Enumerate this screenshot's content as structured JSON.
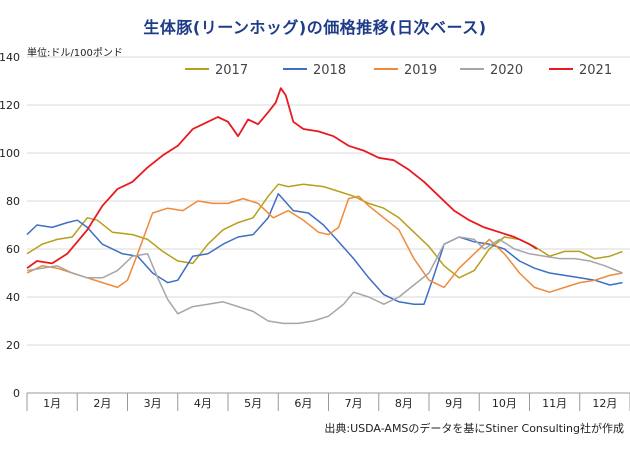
{
  "chart_data": {
    "type": "line",
    "title": "生体豚(リーンホッグ)の価格推移(日次ベース)",
    "ylabel": "単位:ドル/100ポンド",
    "source": "出典:USDA-AMSのデータを基にStiner Consulting社が作成",
    "ylim": [
      0,
      140
    ],
    "yticks": [
      0,
      20,
      40,
      60,
      80,
      100,
      120,
      140
    ],
    "xlim": [
      1,
      13
    ],
    "x_tick_labels": [
      "1月",
      "2月",
      "3月",
      "4月",
      "5月",
      "6月",
      "7月",
      "8月",
      "9月",
      "10月",
      "11月",
      "12月"
    ],
    "legend_position": "top",
    "grid": true,
    "series": [
      {
        "name": "2017",
        "color": "#b5a01b",
        "x": [
          1.0,
          1.3,
          1.6,
          1.9,
          2.2,
          2.4,
          2.7,
          3.1,
          3.4,
          3.7,
          4.0,
          4.3,
          4.6,
          4.9,
          5.2,
          5.5,
          5.8,
          6.0,
          6.2,
          6.5,
          6.9,
          7.2,
          7.5,
          7.8,
          8.1,
          8.4,
          8.7,
          9.0,
          9.3,
          9.6,
          9.9,
          10.2,
          10.5,
          10.8,
          11.1,
          11.4,
          11.7,
          12.0,
          12.3,
          12.6,
          12.85
        ],
        "y": [
          58,
          62,
          64,
          65,
          73,
          72,
          67,
          66,
          64,
          59,
          55,
          54,
          62,
          68,
          71,
          73,
          82,
          87,
          86,
          87,
          86,
          84,
          82,
          79,
          77,
          73,
          67,
          61,
          53,
          48,
          51,
          60,
          65,
          64,
          61,
          57,
          59,
          59,
          56,
          57,
          59
        ]
      },
      {
        "name": "2018",
        "color": "#3e6fc4",
        "x": [
          1.0,
          1.2,
          1.5,
          1.8,
          2.0,
          2.2,
          2.5,
          2.9,
          3.2,
          3.5,
          3.8,
          4.0,
          4.3,
          4.6,
          4.9,
          5.2,
          5.5,
          5.8,
          6.0,
          6.3,
          6.6,
          6.9,
          7.2,
          7.5,
          7.8,
          8.1,
          8.4,
          8.7,
          8.9,
          9.1,
          9.3,
          9.6,
          9.9,
          10.2,
          10.5,
          10.8,
          11.1,
          11.4,
          11.7,
          12.0,
          12.3,
          12.6,
          12.85
        ],
        "y": [
          66,
          70,
          69,
          71,
          72,
          69,
          62,
          58,
          57,
          50,
          46,
          47,
          57,
          58,
          62,
          65,
          66,
          73,
          83,
          76,
          75,
          70,
          63,
          56,
          48,
          41,
          38,
          37,
          37,
          49,
          62,
          65,
          63,
          62,
          60,
          55,
          52,
          50,
          49,
          48,
          47,
          45,
          46
        ]
      },
      {
        "name": "2019",
        "color": "#ef8a3a",
        "x": [
          1.0,
          1.3,
          1.6,
          1.9,
          2.2,
          2.5,
          2.8,
          3.0,
          3.2,
          3.5,
          3.8,
          4.1,
          4.4,
          4.7,
          5.0,
          5.3,
          5.6,
          5.9,
          6.2,
          6.5,
          6.8,
          7.0,
          7.2,
          7.4,
          7.6,
          7.8,
          8.1,
          8.4,
          8.7,
          9.0,
          9.3,
          9.6,
          9.9,
          10.2,
          10.5,
          10.8,
          11.1,
          11.4,
          11.7,
          12.0,
          12.3,
          12.6,
          12.85
        ],
        "y": [
          50,
          53,
          52,
          50,
          48,
          46,
          44,
          47,
          58,
          75,
          77,
          76,
          80,
          79,
          79,
          81,
          79,
          73,
          76,
          72,
          67,
          66,
          69,
          81,
          82,
          78,
          73,
          68,
          56,
          47,
          44,
          52,
          58,
          64,
          58,
          50,
          44,
          42,
          44,
          46,
          47,
          49,
          50
        ]
      },
      {
        "name": "2020",
        "color": "#a6a6a6",
        "x": [
          1.0,
          1.3,
          1.6,
          1.9,
          2.2,
          2.5,
          2.8,
          3.1,
          3.4,
          3.6,
          3.8,
          4.0,
          4.3,
          4.6,
          4.9,
          5.2,
          5.5,
          5.8,
          6.1,
          6.4,
          6.7,
          7.0,
          7.3,
          7.5,
          7.8,
          8.1,
          8.4,
          8.7,
          9.0,
          9.3,
          9.6,
          9.9,
          10.1,
          10.4,
          10.7,
          11.0,
          11.3,
          11.6,
          11.9,
          12.2,
          12.5,
          12.85
        ],
        "y": [
          51,
          52,
          53,
          50,
          48,
          48,
          51,
          57,
          58,
          48,
          39,
          33,
          36,
          37,
          38,
          36,
          34,
          30,
          29,
          29,
          30,
          32,
          37,
          42,
          40,
          37,
          40,
          45,
          50,
          62,
          65,
          64,
          60,
          64,
          60,
          58,
          57,
          56,
          56,
          55,
          53,
          50
        ]
      },
      {
        "name": "2021",
        "color": "#e8191f",
        "x": [
          1.0,
          1.2,
          1.5,
          1.8,
          2.0,
          2.2,
          2.5,
          2.8,
          3.1,
          3.4,
          3.7,
          4.0,
          4.3,
          4.6,
          4.8,
          5.0,
          5.2,
          5.4,
          5.6,
          5.8,
          5.95,
          6.05,
          6.15,
          6.3,
          6.5,
          6.8,
          7.1,
          7.4,
          7.7,
          8.0,
          8.3,
          8.6,
          8.9,
          9.2,
          9.5,
          9.8,
          10.1,
          10.4,
          10.7,
          11.0,
          11.15
        ],
        "y": [
          52,
          55,
          54,
          58,
          63,
          68,
          78,
          85,
          88,
          94,
          99,
          103,
          110,
          113,
          115,
          113,
          107,
          114,
          112,
          117,
          121,
          127,
          124,
          113,
          110,
          109,
          107,
          103,
          101,
          98,
          97,
          93,
          88,
          82,
          76,
          72,
          69,
          67,
          65,
          62,
          60
        ]
      }
    ]
  }
}
